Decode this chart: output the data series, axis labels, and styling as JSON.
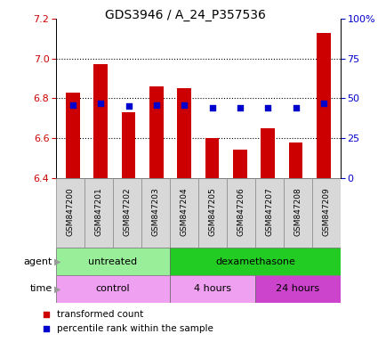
{
  "title": "GDS3946 / A_24_P357536",
  "samples": [
    "GSM847200",
    "GSM847201",
    "GSM847202",
    "GSM847203",
    "GSM847204",
    "GSM847205",
    "GSM847206",
    "GSM847207",
    "GSM847208",
    "GSM847209"
  ],
  "transformed_counts": [
    6.83,
    6.97,
    6.73,
    6.86,
    6.85,
    6.6,
    6.54,
    6.65,
    6.58,
    7.13
  ],
  "percentile_ranks": [
    46,
    47,
    45,
    46,
    46,
    44,
    44,
    44,
    44,
    47
  ],
  "ylim_left": [
    6.4,
    7.2
  ],
  "ylim_right": [
    0,
    100
  ],
  "yticks_left": [
    6.4,
    6.6,
    6.8,
    7.0,
    7.2
  ],
  "yticks_right": [
    0,
    25,
    50,
    75,
    100
  ],
  "bar_color": "#cc0000",
  "dot_color": "#0000cc",
  "bar_bottom": 6.4,
  "agent_groups": [
    {
      "label": "untreated",
      "start": 0,
      "end": 4,
      "color": "#99ee99"
    },
    {
      "label": "dexamethasone",
      "start": 4,
      "end": 10,
      "color": "#22cc22"
    }
  ],
  "time_groups": [
    {
      "label": "control",
      "start": 0,
      "end": 4,
      "color": "#f0a0f0"
    },
    {
      "label": "4 hours",
      "start": 4,
      "end": 7,
      "color": "#f0a0f0"
    },
    {
      "label": "24 hours",
      "start": 7,
      "end": 10,
      "color": "#cc44cc"
    }
  ],
  "legend_items": [
    {
      "color": "#cc0000",
      "label": "transformed count"
    },
    {
      "color": "#0000cc",
      "label": "percentile rank within the sample"
    }
  ],
  "agent_label": "agent",
  "time_label": "time"
}
